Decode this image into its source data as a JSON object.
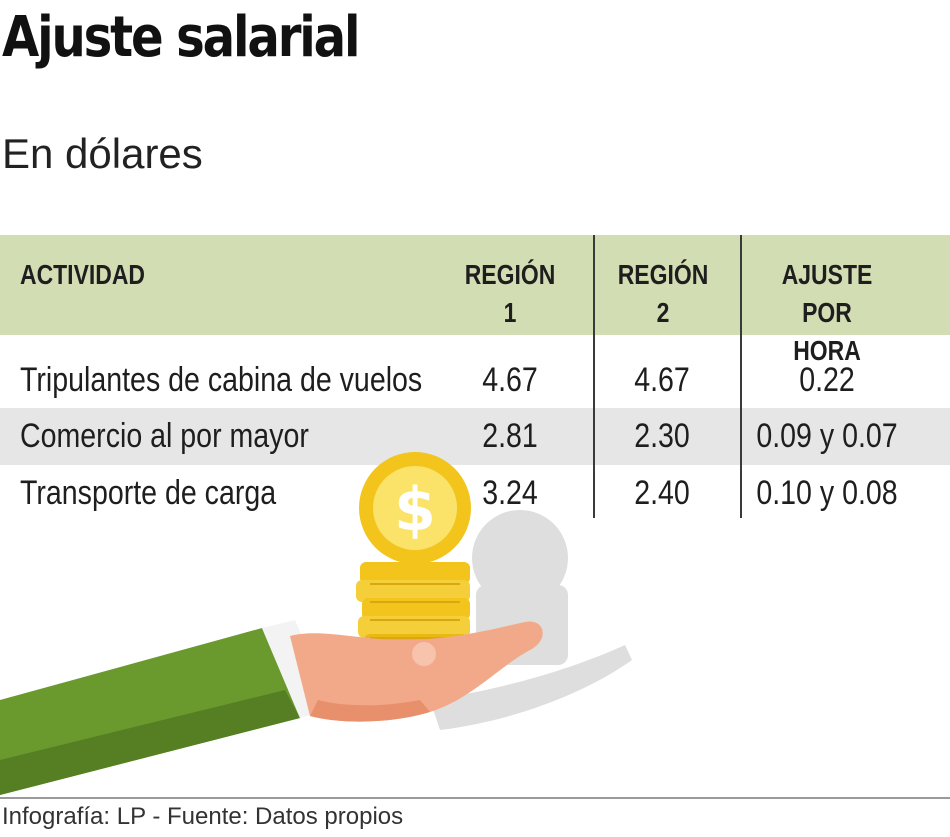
{
  "title": "Ajuste salarial",
  "subtitle": "En dólares",
  "table": {
    "headers": [
      "ACTIVIDAD",
      "REGIÓN\n1",
      "REGIÓN\n2",
      "AJUSTE\nPOR HORA"
    ],
    "rows": [
      [
        "Tripulantes de cabina de vuelos",
        "4.67",
        "4.67",
        "0.22"
      ],
      [
        "Comercio al por mayor",
        "2.81",
        "2.30",
        "0.09 y 0.07"
      ],
      [
        "Transporte de carga",
        "3.24",
        "2.40",
        "0.10 y 0.08"
      ]
    ]
  },
  "illustration": {
    "coin_symbol": "$",
    "icons": [
      "hand-icon",
      "coin-stack-icon",
      "dollar-coin-icon",
      "sleeve-icon"
    ]
  },
  "credit": "Infografía: LP - Fuente: Datos propios",
  "colors": {
    "header_band": "#d3ddb3",
    "row_band": "#e6e6e6",
    "sleeve": "#6a9a2e",
    "coin": "#f2c41c",
    "skin": "#f2a98a"
  }
}
